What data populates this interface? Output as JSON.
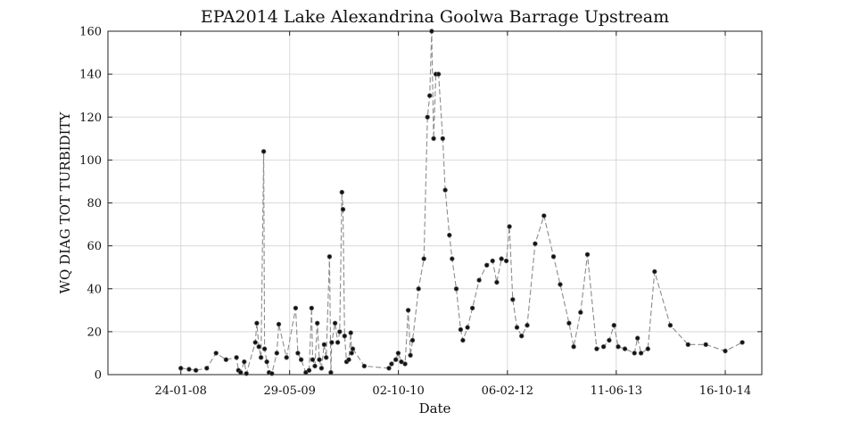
{
  "chart_data": {
    "type": "line",
    "title": "EPA2014 Lake Alexandrina Goolwa Barrage Upstream",
    "xlabel": "Date",
    "ylabel": "WQ DIAG TOT TURBIDITY",
    "ylim": [
      0,
      160
    ],
    "yticks": [
      0,
      20,
      40,
      60,
      80,
      100,
      120,
      140,
      160
    ],
    "xlim": [
      "2007-03-01",
      "2015-03-30"
    ],
    "xticks": [
      "2008-01-24",
      "2009-05-29",
      "2010-10-02",
      "2012-02-06",
      "2013-06-11",
      "2014-10-16"
    ],
    "xtick_labels": [
      "24-01-08",
      "29-05-09",
      "02-10-10",
      "06-02-12",
      "11-06-13",
      "16-10-14"
    ],
    "grid": true,
    "series": [
      {
        "points": [
          [
            "2008-01-24",
            3
          ],
          [
            "2008-03-01",
            2.5
          ],
          [
            "2008-04-01",
            2
          ],
          [
            "2008-05-20",
            3
          ],
          [
            "2008-07-01",
            10
          ],
          [
            "2008-08-15",
            7
          ],
          [
            "2008-10-01",
            8
          ],
          [
            "2008-10-10",
            2
          ],
          [
            "2008-10-20",
            1
          ],
          [
            "2008-11-05",
            6
          ],
          [
            "2008-11-15",
            0.5
          ],
          [
            "2008-12-25",
            15
          ],
          [
            "2009-01-01",
            24
          ],
          [
            "2009-01-10",
            13
          ],
          [
            "2009-01-20",
            8
          ],
          [
            "2009-02-01",
            104
          ],
          [
            "2009-02-05",
            12
          ],
          [
            "2009-02-15",
            6
          ],
          [
            "2009-02-25",
            1
          ],
          [
            "2009-03-10",
            0.5
          ],
          [
            "2009-04-01",
            10
          ],
          [
            "2009-04-10",
            23.5
          ],
          [
            "2009-05-15",
            8
          ],
          [
            "2009-06-25",
            31
          ],
          [
            "2009-07-05",
            10
          ],
          [
            "2009-07-20",
            7
          ],
          [
            "2009-08-10",
            1
          ],
          [
            "2009-08-25",
            2
          ],
          [
            "2009-09-05",
            31
          ],
          [
            "2009-09-10",
            7
          ],
          [
            "2009-09-20",
            4
          ],
          [
            "2009-10-01",
            24
          ],
          [
            "2009-10-10",
            7
          ],
          [
            "2009-10-20",
            3
          ],
          [
            "2009-11-01",
            14
          ],
          [
            "2009-11-10",
            8
          ],
          [
            "2009-11-25",
            55
          ],
          [
            "2009-12-01",
            1
          ],
          [
            "2009-12-05",
            15
          ],
          [
            "2009-12-20",
            24
          ],
          [
            "2010-01-01",
            15
          ],
          [
            "2010-01-10",
            20
          ],
          [
            "2010-01-20",
            85
          ],
          [
            "2010-01-25",
            77
          ],
          [
            "2010-02-01",
            18
          ],
          [
            "2010-02-10",
            6
          ],
          [
            "2010-02-20",
            7
          ],
          [
            "2010-03-01",
            19.5
          ],
          [
            "2010-03-05",
            10
          ],
          [
            "2010-03-10",
            12
          ],
          [
            "2010-05-01",
            4
          ],
          [
            "2010-08-20",
            3
          ],
          [
            "2010-09-01",
            5
          ],
          [
            "2010-09-20",
            7
          ],
          [
            "2010-10-01",
            10
          ],
          [
            "2010-10-15",
            6
          ],
          [
            "2010-11-01",
            5
          ],
          [
            "2010-11-15",
            30
          ],
          [
            "2010-11-25",
            9
          ],
          [
            "2010-12-05",
            16
          ],
          [
            "2011-01-01",
            40
          ],
          [
            "2011-01-25",
            54
          ],
          [
            "2011-02-10",
            120
          ],
          [
            "2011-02-20",
            130
          ],
          [
            "2011-03-01",
            160
          ],
          [
            "2011-03-10",
            110
          ],
          [
            "2011-03-20",
            140
          ],
          [
            "2011-04-01",
            140
          ],
          [
            "2011-04-20",
            110
          ],
          [
            "2011-05-01",
            86
          ],
          [
            "2011-05-20",
            65
          ],
          [
            "2011-06-01",
            54
          ],
          [
            "2011-06-20",
            40
          ],
          [
            "2011-07-10",
            21
          ],
          [
            "2011-07-20",
            16
          ],
          [
            "2011-08-10",
            22
          ],
          [
            "2011-09-01",
            31
          ],
          [
            "2011-10-01",
            44
          ],
          [
            "2011-11-05",
            51
          ],
          [
            "2011-12-01",
            53
          ],
          [
            "2011-12-20",
            43
          ],
          [
            "2012-01-10",
            54
          ],
          [
            "2012-02-01",
            53
          ],
          [
            "2012-02-15",
            69
          ],
          [
            "2012-03-01",
            35
          ],
          [
            "2012-03-20",
            22
          ],
          [
            "2012-04-10",
            18
          ],
          [
            "2012-05-05",
            23
          ],
          [
            "2012-06-10",
            61
          ],
          [
            "2012-07-20",
            74
          ],
          [
            "2012-09-01",
            55
          ],
          [
            "2012-10-01",
            42
          ],
          [
            "2012-11-10",
            24
          ],
          [
            "2012-12-01",
            13
          ],
          [
            "2013-01-01",
            29
          ],
          [
            "2013-02-01",
            56
          ],
          [
            "2013-03-15",
            12
          ],
          [
            "2013-04-15",
            13
          ],
          [
            "2013-05-10",
            16
          ],
          [
            "2013-06-01",
            23
          ],
          [
            "2013-06-20",
            13
          ],
          [
            "2013-07-20",
            12
          ],
          [
            "2013-09-01",
            10
          ],
          [
            "2013-09-15",
            17
          ],
          [
            "2013-10-01",
            10
          ],
          [
            "2013-11-01",
            12
          ],
          [
            "2013-12-01",
            48
          ],
          [
            "2014-02-10",
            23
          ],
          [
            "2014-05-01",
            14
          ],
          [
            "2014-07-20",
            14
          ],
          [
            "2014-10-16",
            11
          ],
          [
            "2015-01-01",
            15
          ]
        ]
      }
    ]
  }
}
